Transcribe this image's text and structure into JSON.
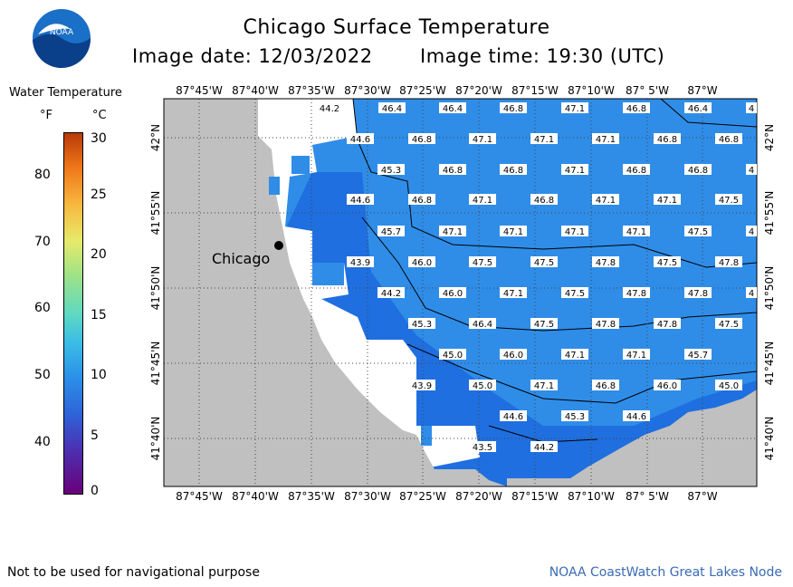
{
  "header": {
    "title": "Chicago Surface Temperature",
    "date_label": "Image date: 12/03/2022",
    "time_label": "Image time: 19:30 (UTC)"
  },
  "logo": {
    "text": "NOAA",
    "colors": {
      "sky": "#1a6fc6",
      "dark": "#0a3f8a",
      "bird": "#ffffff"
    }
  },
  "legend": {
    "title": "Water Temperature",
    "unit_f": "°F",
    "unit_c": "°C",
    "f_ticks": [
      "80",
      "70",
      "60",
      "50",
      "40"
    ],
    "c_ticks": [
      "30",
      "25",
      "20",
      "15",
      "10",
      "5",
      "0"
    ]
  },
  "map": {
    "lon_labels": [
      "87°45'W",
      "87°40'W",
      "87°35'W",
      "87°30'W",
      "87°25'W",
      "87°20'W",
      "87°15'W",
      "87°10'W",
      "87° 5'W",
      "87°W"
    ],
    "lat_labels": [
      "42°N",
      "41°55'N",
      "41°50'N",
      "41°45'N",
      "41°40'N"
    ],
    "city": "Chicago",
    "colors": {
      "land": "#c0c0c0",
      "water_blue": "#2f8de8",
      "water_dark": "#1f6fe0",
      "no_data": "#ffffff"
    },
    "temperature_labels": [
      [
        "44.2",
        "46.4",
        "46.4",
        "46.8",
        "47.1",
        "46.8",
        "46.4",
        "4"
      ],
      [
        "44.6",
        "46.8",
        "47.1",
        "47.1",
        "47.1",
        "46.8",
        "46.8"
      ],
      [
        "45.3",
        "46.8",
        "46.8",
        "47.1",
        "46.8",
        "46.8",
        "4"
      ],
      [
        "44.6",
        "46.8",
        "47.1",
        "46.8",
        "47.1",
        "47.1",
        "47.5"
      ],
      [
        "45.7",
        "47.1",
        "47.1",
        "47.1",
        "47.1",
        "47.5",
        "4"
      ],
      [
        "43.9",
        "46.0",
        "47.5",
        "47.5",
        "47.8",
        "47.5",
        "47.8"
      ],
      [
        "44.2",
        "46.0",
        "47.1",
        "47.5",
        "47.8",
        "47.8",
        "4"
      ],
      [
        "45.3",
        "46.4",
        "47.5",
        "47.8",
        "47.8",
        "47.5"
      ],
      [
        "45.0",
        "46.0",
        "47.1",
        "47.1",
        "45.7"
      ],
      [
        "43.9",
        "45.0",
        "47.1",
        "46.8",
        "46.0",
        "45.0"
      ],
      [
        "44.6",
        "45.3",
        "44.6"
      ],
      [
        "43.5",
        "44.2"
      ]
    ]
  },
  "footer": {
    "disclaimer": "Not to be used for navigational purpose",
    "credit": "NOAA CoastWatch Great Lakes Node"
  }
}
